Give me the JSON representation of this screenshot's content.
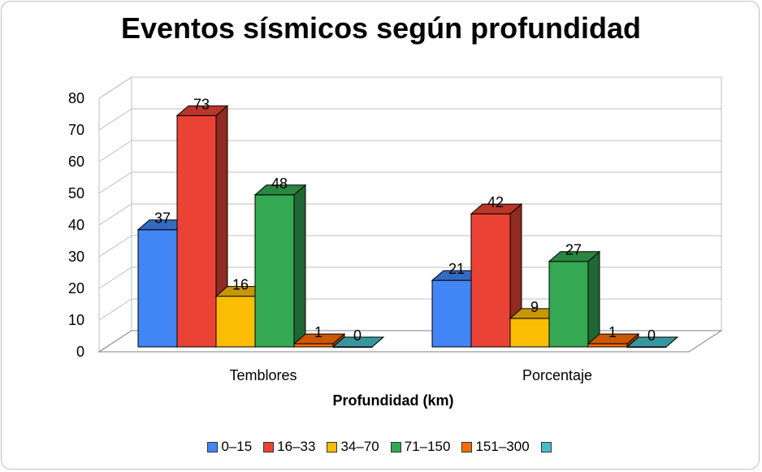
{
  "chart_data": {
    "type": "bar",
    "title": "Eventos sísmicos según profundidad",
    "xlabel": "Profundidad (km)",
    "ylabel": "",
    "ylim": [
      0,
      80
    ],
    "yticks": [
      0,
      10,
      20,
      30,
      40,
      50,
      60,
      70,
      80
    ],
    "grid": true,
    "legend_position": "bottom",
    "categories": [
      "Temblores",
      "Porcentaje"
    ],
    "series": [
      {
        "name": "0–15",
        "color": "#4285f4",
        "values": [
          37,
          21
        ]
      },
      {
        "name": "16–33",
        "color": "#ea4335",
        "values": [
          73,
          42
        ]
      },
      {
        "name": "34–70",
        "color": "#fbbc04",
        "values": [
          16,
          9
        ]
      },
      {
        "name": "71–150",
        "color": "#34a853",
        "values": [
          48,
          27
        ]
      },
      {
        "name": "151–300",
        "color": "#ff6d01",
        "values": [
          1,
          1
        ]
      },
      {
        "name": "",
        "color": "#46bdc6",
        "values": [
          0,
          0
        ]
      }
    ]
  }
}
